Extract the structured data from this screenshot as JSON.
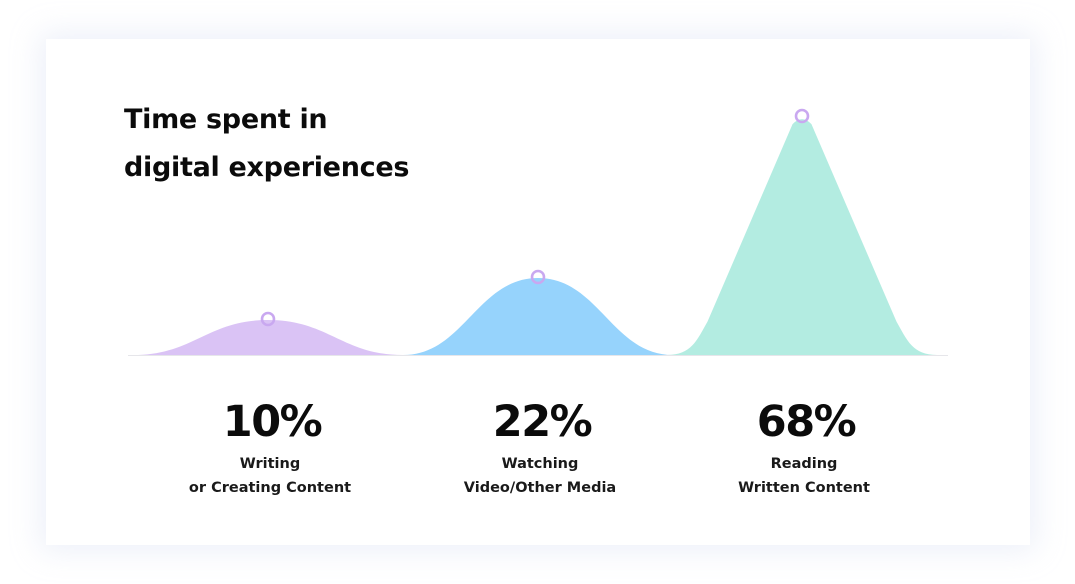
{
  "chart_data": {
    "type": "area",
    "title_lines": [
      "Time spent in",
      "digital experiences"
    ],
    "categories": [
      {
        "label_lines": [
          "Writing",
          "or Creating Content"
        ],
        "value": 10,
        "value_label": "10%",
        "color": "#d9c1f5"
      },
      {
        "label_lines": [
          "Watching",
          "Video/Other Media"
        ],
        "value": 22,
        "value_label": "22%",
        "color": "#93d2fc"
      },
      {
        "label_lines": [
          "Reading",
          "Written Content"
        ],
        "value": 68,
        "value_label": "68%",
        "color": "#b1ebe0"
      }
    ],
    "marker_color": "#c9a8f0",
    "grid": false
  }
}
